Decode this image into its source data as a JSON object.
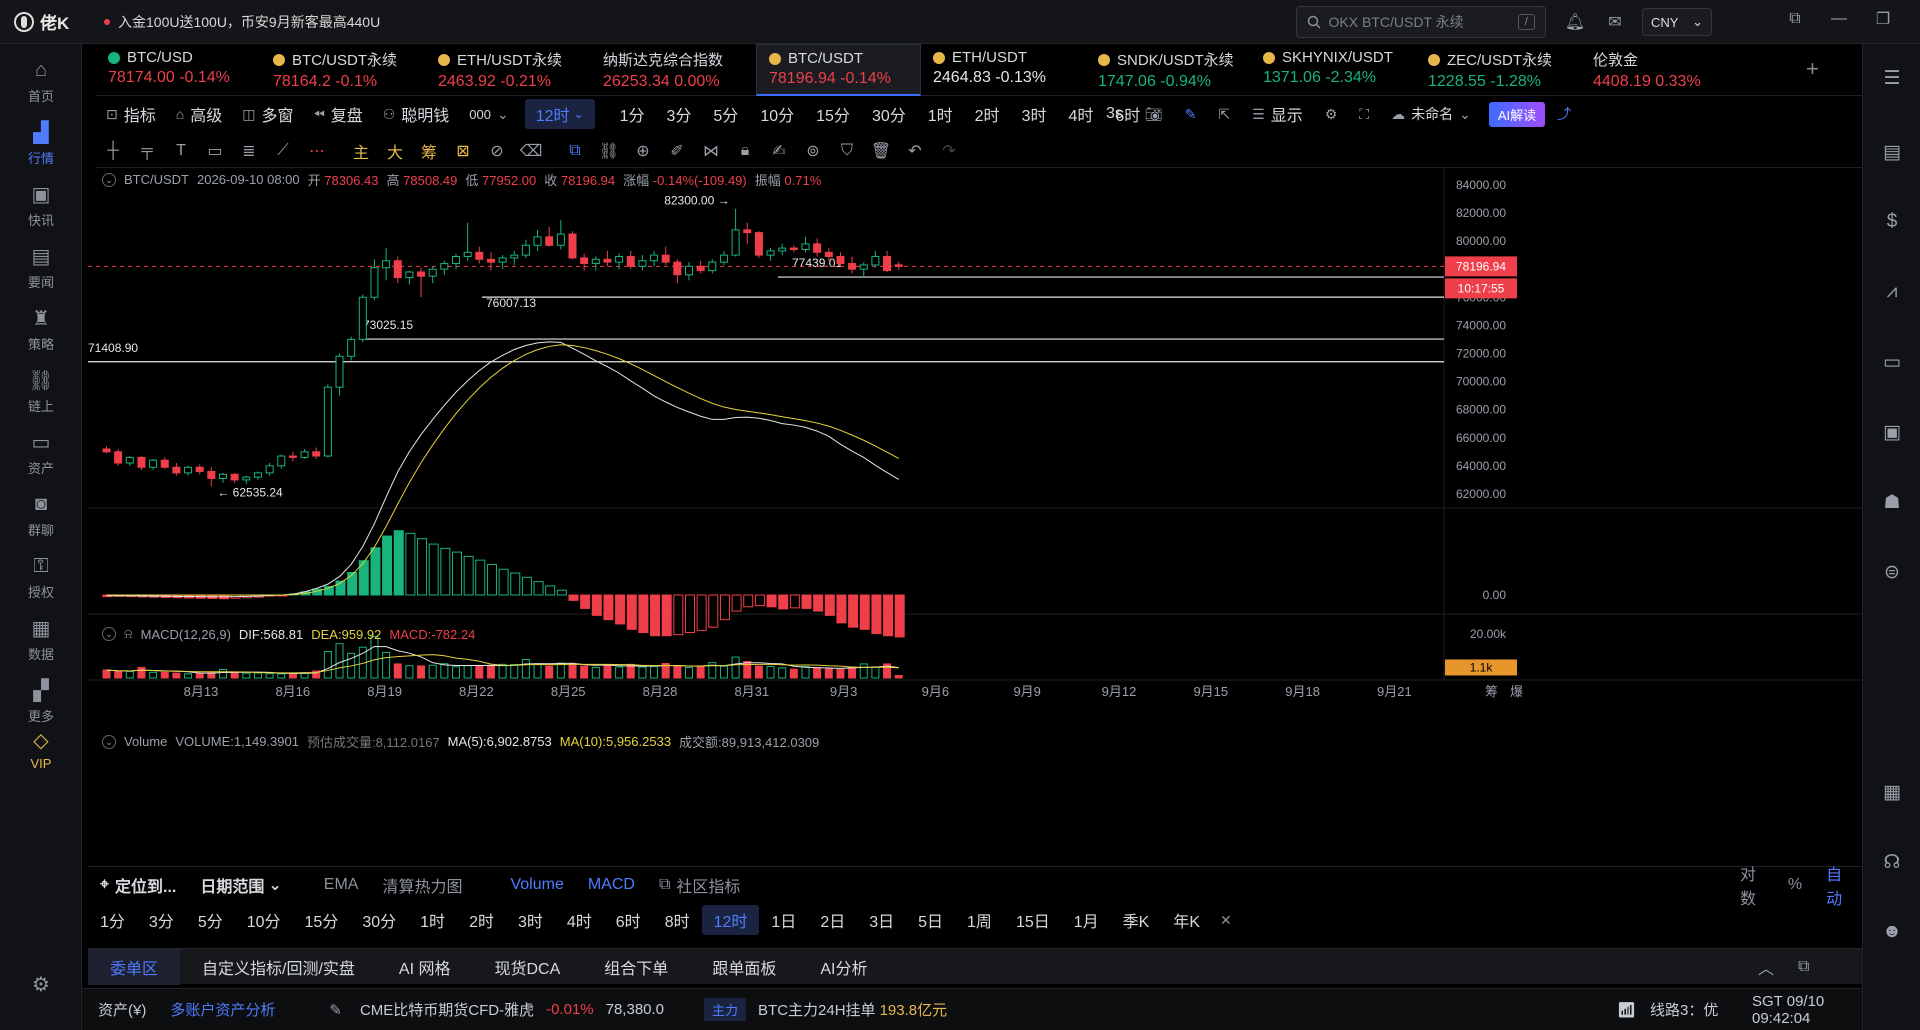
{
  "app": {
    "name": "佬K",
    "promo": "入金100U送100U，币安9月新客最高440U"
  },
  "search": {
    "placeholder": "OKX BTC/USDT 永续",
    "shortcut": "/"
  },
  "currency": "CNY",
  "window_icons": [
    "screen-icon",
    "minimize-icon",
    "restore-icon",
    "close-icon"
  ],
  "top_icons": [
    "bell-icon",
    "mail-icon"
  ],
  "nav": [
    {
      "label": "首页",
      "icon": "home-icon"
    },
    {
      "label": "行情",
      "icon": "market-icon",
      "active": true
    },
    {
      "label": "快讯",
      "icon": "flash-news-icon"
    },
    {
      "label": "要闻",
      "icon": "news-icon"
    },
    {
      "label": "策略",
      "icon": "strategy-icon"
    },
    {
      "label": "链上",
      "icon": "onchain-icon"
    },
    {
      "label": "资产",
      "icon": "wallet-icon"
    },
    {
      "label": "群聊",
      "icon": "chat-icon"
    },
    {
      "label": "授权",
      "icon": "auth-icon"
    },
    {
      "label": "数据",
      "icon": "data-icon"
    },
    {
      "label": "更多",
      "icon": "more-icon"
    },
    {
      "label": "VIP",
      "icon": "vip-icon"
    }
  ],
  "tickers": [
    {
      "name": "BTC/USD",
      "price": "78174.00",
      "change": "-0.14%",
      "dir": "down",
      "dot": "g"
    },
    {
      "name": "BTC/USDT永续",
      "price": "78164.2",
      "change": "-0.1%",
      "dir": "down",
      "dot": "y"
    },
    {
      "name": "ETH/USDT永续",
      "price": "2463.92",
      "change": "-0.21%",
      "dir": "down",
      "dot": "y"
    },
    {
      "name": "纳斯达克综合指数",
      "price": "26253.34",
      "change": "0.00%",
      "dir": "down",
      "dot": ""
    },
    {
      "name": "BTC/USDT",
      "price": "78196.94",
      "change": "-0.14%",
      "dir": "down",
      "dot": "y",
      "active": true
    },
    {
      "name": "ETH/USDT",
      "price": "2464.83",
      "change": "-0.13%",
      "dir": "neutral",
      "dot": "y"
    },
    {
      "name": "SNDK/USDT永续",
      "price": "1747.06",
      "change": "-0.94%",
      "dir": "up",
      "dot": "y"
    },
    {
      "name": "SKHYNIX/USDT",
      "price": "1371.06",
      "change": "-2.34%",
      "dir": "up",
      "dot": "y"
    },
    {
      "name": "ZEC/USDT永续",
      "price": "1228.55",
      "change": "-1.28%",
      "dir": "up",
      "dot": "y"
    },
    {
      "name": "伦敦金",
      "price": "4408.19",
      "change": "0.33%",
      "dir": "down",
      "dot": ""
    }
  ],
  "toolbar": {
    "indicator": "指标",
    "advanced": "高级",
    "multi": "多窗",
    "replay": "复盘",
    "smart": "聪明钱",
    "mode_value": "000",
    "active_interval": "12时",
    "intervals": [
      "1分",
      "3分",
      "5分",
      "10分",
      "15分",
      "30分",
      "1时",
      "2时",
      "3时",
      "4时",
      "6时"
    ],
    "refresh": "3s",
    "display": "显示",
    "layout_name": "未命名",
    "ai": "AI解读"
  },
  "drawing_tools": [
    "crosshair-tool-icon",
    "hline-tool-icon",
    "text-tool-icon",
    "ruler-tool-icon",
    "fib-tool-icon",
    "trendline-tool-icon",
    "dot-tool-icon",
    "main-label",
    "big-label",
    "chip-label",
    "rect-tool-icon",
    "measure-tool-icon",
    "eraser-tool-icon",
    "magnet-icon",
    "link-icon",
    "zoom-icon",
    "brush-icon",
    "pattern-icon",
    "lock-icon",
    "note-icon",
    "hide-icon",
    "filter-icon",
    "trash-icon",
    "undo-icon",
    "redo-icon"
  ],
  "drawing_labels": {
    "main": "主",
    "big": "大",
    "chip": "筹"
  },
  "ohlc": {
    "symbol": "BTC/USDT",
    "time": "2026-09-10 08:00",
    "open_label": "开",
    "open": "78306.43",
    "high_label": "高",
    "high": "78508.49",
    "low_label": "低",
    "low": "77952.00",
    "close_label": "收",
    "close": "78196.94",
    "chg_label": "涨幅",
    "chg": "-0.14%(-109.49)",
    "amp_label": "振幅",
    "amp": "0.71%"
  },
  "macd": {
    "label": "MACD(12,26,9)",
    "dif": "DIF:568.81",
    "dea": "DEA:959.92",
    "macd": "MACD:-782.24",
    "zero": "0.00"
  },
  "volume": {
    "label": "Volume",
    "volume": "VOLUME:1,149.3901",
    "est": "预估成交量:8,112.0167",
    "ma5": "MA(5):6,902.8753",
    "ma10": "MA(10):5,956.2533",
    "turnover": "成交额:89,913,412.0309",
    "axis_top": "20.00k",
    "current": "1.1k"
  },
  "chart_data": {
    "type": "candlestick",
    "interval": "12时",
    "y_ticks": [
      84000,
      82000,
      80000,
      78000,
      76000,
      74000,
      72000,
      70000,
      68000,
      66000,
      64000,
      62000
    ],
    "y_tick_labels": [
      "84000.00",
      "82000.00",
      "80000.00",
      "78000.00",
      "76000.00",
      "74000.00",
      "72000.00",
      "70000.00",
      "68000.00",
      "66000.00",
      "64000.00",
      "62000.00"
    ],
    "ylim": [
      61000,
      85200
    ],
    "x_labels": [
      "8月13",
      "8月16",
      "8月19",
      "8月22",
      "8月25",
      "8月28",
      "8月31",
      "9月3",
      "9月6",
      "9月9",
      "9月12",
      "9月15",
      "9月18",
      "9月21"
    ],
    "last_price": "78196.94",
    "countdown": "10:17:55",
    "price_lines": [
      {
        "value": 71408.9,
        "label": "71408.90"
      },
      {
        "value": 73025.15,
        "label": "73025.15"
      },
      {
        "value": 76007.13,
        "label": "76007.13"
      },
      {
        "value": 77439.01,
        "label": "77439.01"
      }
    ],
    "high_marker": {
      "value": 82300,
      "label": "82300.00 →"
    },
    "low_marker": {
      "value": 62535.24,
      "label": "← 62535.24"
    },
    "candles": [
      [
        65200,
        65400,
        64900,
        65000
      ],
      [
        65000,
        65200,
        64000,
        64200
      ],
      [
        64200,
        64700,
        64000,
        64600
      ],
      [
        64600,
        64700,
        63700,
        63900
      ],
      [
        63900,
        64500,
        63700,
        64400
      ],
      [
        64400,
        64600,
        63800,
        63900
      ],
      [
        63900,
        64200,
        63300,
        63500
      ],
      [
        63500,
        64000,
        63300,
        63900
      ],
      [
        63900,
        64100,
        63400,
        63600
      ],
      [
        63600,
        63900,
        62535,
        63100
      ],
      [
        63100,
        63500,
        62800,
        63400
      ],
      [
        63400,
        63500,
        62800,
        63000
      ],
      [
        63000,
        63300,
        62700,
        63200
      ],
      [
        63200,
        63600,
        63000,
        63500
      ],
      [
        63500,
        64200,
        63300,
        64000
      ],
      [
        64000,
        64800,
        63800,
        64700
      ],
      [
        64700,
        65000,
        64300,
        64600
      ],
      [
        64600,
        65200,
        64500,
        65000
      ],
      [
        65000,
        65300,
        64500,
        64700
      ],
      [
        64700,
        69800,
        64600,
        69600
      ],
      [
        69600,
        72000,
        69000,
        71800
      ],
      [
        71800,
        73200,
        71500,
        73000
      ],
      [
        73000,
        76200,
        72800,
        76000
      ],
      [
        76000,
        78700,
        75800,
        78100
      ],
      [
        78100,
        79500,
        77200,
        78600
      ],
      [
        78600,
        78900,
        77000,
        77400
      ],
      [
        77400,
        77900,
        76900,
        77800
      ],
      [
        77800,
        78100,
        76007,
        77500
      ],
      [
        77500,
        78200,
        77000,
        78000
      ],
      [
        78000,
        78600,
        77600,
        78400
      ],
      [
        78400,
        79100,
        78000,
        78900
      ],
      [
        78900,
        81300,
        78600,
        79200
      ],
      [
        79200,
        79600,
        78400,
        78700
      ],
      [
        78700,
        79200,
        77900,
        78500
      ],
      [
        78500,
        79000,
        78000,
        78800
      ],
      [
        78800,
        79300,
        78300,
        79000
      ],
      [
        79000,
        80100,
        78800,
        79700
      ],
      [
        79700,
        80800,
        79300,
        80300
      ],
      [
        80300,
        81000,
        79600,
        79700
      ],
      [
        79700,
        81500,
        79400,
        80500
      ],
      [
        80500,
        80700,
        78700,
        78800
      ],
      [
        78800,
        79100,
        77900,
        78400
      ],
      [
        78400,
        78900,
        77900,
        78700
      ],
      [
        78700,
        79300,
        78200,
        78500
      ],
      [
        78500,
        79100,
        78000,
        78900
      ],
      [
        78900,
        79300,
        78000,
        78200
      ],
      [
        78200,
        79000,
        77900,
        78600
      ],
      [
        78600,
        79300,
        78200,
        79000
      ],
      [
        79000,
        79600,
        78300,
        78500
      ],
      [
        78500,
        78700,
        77000,
        77600
      ],
      [
        77600,
        78500,
        77200,
        78200
      ],
      [
        78200,
        78600,
        77700,
        77900
      ],
      [
        77900,
        78700,
        77700,
        78500
      ],
      [
        78500,
        79300,
        78300,
        79000
      ],
      [
        79000,
        82300,
        78900,
        80800
      ],
      [
        80800,
        81300,
        79800,
        80600
      ],
      [
        80600,
        80700,
        78800,
        79000
      ],
      [
        79000,
        79500,
        78600,
        79300
      ],
      [
        79300,
        79800,
        79000,
        79500
      ],
      [
        79500,
        79700,
        79200,
        79400
      ],
      [
        79400,
        80300,
        79200,
        79800
      ],
      [
        79800,
        80200,
        78900,
        79200
      ],
      [
        79200,
        79500,
        78600,
        78900
      ],
      [
        78900,
        79200,
        78200,
        78400
      ],
      [
        78400,
        78900,
        77700,
        78000
      ],
      [
        78000,
        78500,
        77400,
        78300
      ],
      [
        78300,
        79300,
        78100,
        78900
      ],
      [
        78900,
        79300,
        77800,
        77900
      ],
      [
        78306.43,
        78508.49,
        77952,
        78196.94
      ]
    ],
    "macd_hist": [
      -30,
      -25,
      -30,
      -35,
      -40,
      -45,
      -50,
      -55,
      -60,
      -65,
      -70,
      -60,
      -50,
      -40,
      -20,
      -5,
      20,
      60,
      110,
      160,
      260,
      420,
      640,
      880,
      1100,
      1200,
      1150,
      1050,
      950,
      870,
      800,
      720,
      650,
      570,
      480,
      410,
      330,
      250,
      170,
      90,
      -100,
      -250,
      -380,
      -460,
      -540,
      -640,
      -700,
      -760,
      -760,
      -740,
      -700,
      -660,
      -600,
      -460,
      -300,
      -220,
      -200,
      -220,
      -260,
      -240,
      -250,
      -300,
      -380,
      -520,
      -600,
      -640,
      -720,
      -760,
      -782
    ],
    "volume": [
      3600,
      3000,
      3000,
      4800,
      2600,
      2600,
      2200,
      1900,
      2100,
      2400,
      3900,
      2500,
      2200,
      2300,
      2000,
      1900,
      2000,
      2400,
      3200,
      12000,
      15600,
      11200,
      14000,
      18800,
      11600,
      6400,
      5600,
      5500,
      5800,
      6500,
      5100,
      5600,
      5300,
      5800,
      6200,
      6100,
      8400,
      6300,
      5400,
      6800,
      6500,
      5400,
      4800,
      6000,
      5000,
      6200,
      5000,
      5200,
      6600,
      5400,
      4800,
      5200,
      7000,
      5400,
      9500,
      7500,
      5400,
      5200,
      4600,
      4000,
      5200,
      4600,
      4200,
      4000,
      5000,
      6400,
      5000,
      6400,
      1149
    ]
  },
  "bottom": {
    "locate": "定位到...",
    "date_range": "日期范围",
    "ema": "EMA",
    "heatmap": "清算热力图",
    "vol": "Volume",
    "macd": "MACD",
    "community": "社区指标",
    "log": "对数",
    "pct": "%",
    "auto": "自动",
    "intervals": [
      "1分",
      "3分",
      "5分",
      "10分",
      "15分",
      "30分",
      "1时",
      "2时",
      "3时",
      "4时",
      "6时",
      "8时",
      "12时",
      "1日",
      "2日",
      "3日",
      "5日",
      "1周",
      "15日",
      "1月",
      "季K",
      "年K"
    ],
    "active_interval": "12时",
    "chip_short": "筹",
    "liq_short": "爆"
  },
  "panel_tabs": [
    "委单区",
    "自定义指标/回测/实盘",
    "AI 网格",
    "现货DCA",
    "组合下单",
    "跟单面板",
    "AI分析"
  ],
  "status": {
    "assets": "资产(¥)",
    "multi": "多账户资产分析",
    "cme": "CME比特币期货CFD-雅虎",
    "cme_chg": "-0.01%",
    "cme_price": "78,380.0",
    "main": "主力",
    "main_text": "BTC主力24H挂单",
    "main_val": "193.8亿元",
    "line": "线路3：优",
    "time": "SGT 09/10 09:42:04"
  }
}
